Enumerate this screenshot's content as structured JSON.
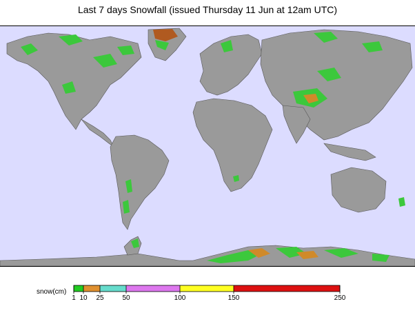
{
  "title": "Last 7 days Snowfall (issued Thursday 11 Jun at 12am UTC)",
  "map": {
    "colors": {
      "ocean": "#dcdcff",
      "land": "#9a9a9a",
      "land_shade": "#7a7a7a",
      "snow_light": "#3cc83c",
      "snow_mid": "#d08a2a",
      "snow_high": "#b05a20"
    }
  },
  "legend": {
    "unit_label": "snow(cm)",
    "ticks": [
      "1",
      "10",
      "25",
      "50",
      "100",
      "150",
      "250"
    ],
    "bins": [
      {
        "from": 1,
        "to": 10,
        "color": "#22cc22"
      },
      {
        "from": 10,
        "to": 25,
        "color": "#e09030"
      },
      {
        "from": 25,
        "to": 50,
        "color": "#66dccc"
      },
      {
        "from": 50,
        "to": 100,
        "color": "#dd77ee"
      },
      {
        "from": 100,
        "to": 150,
        "color": "#ffff22"
      },
      {
        "from": 150,
        "to": 250,
        "color": "#dd1111"
      }
    ]
  }
}
